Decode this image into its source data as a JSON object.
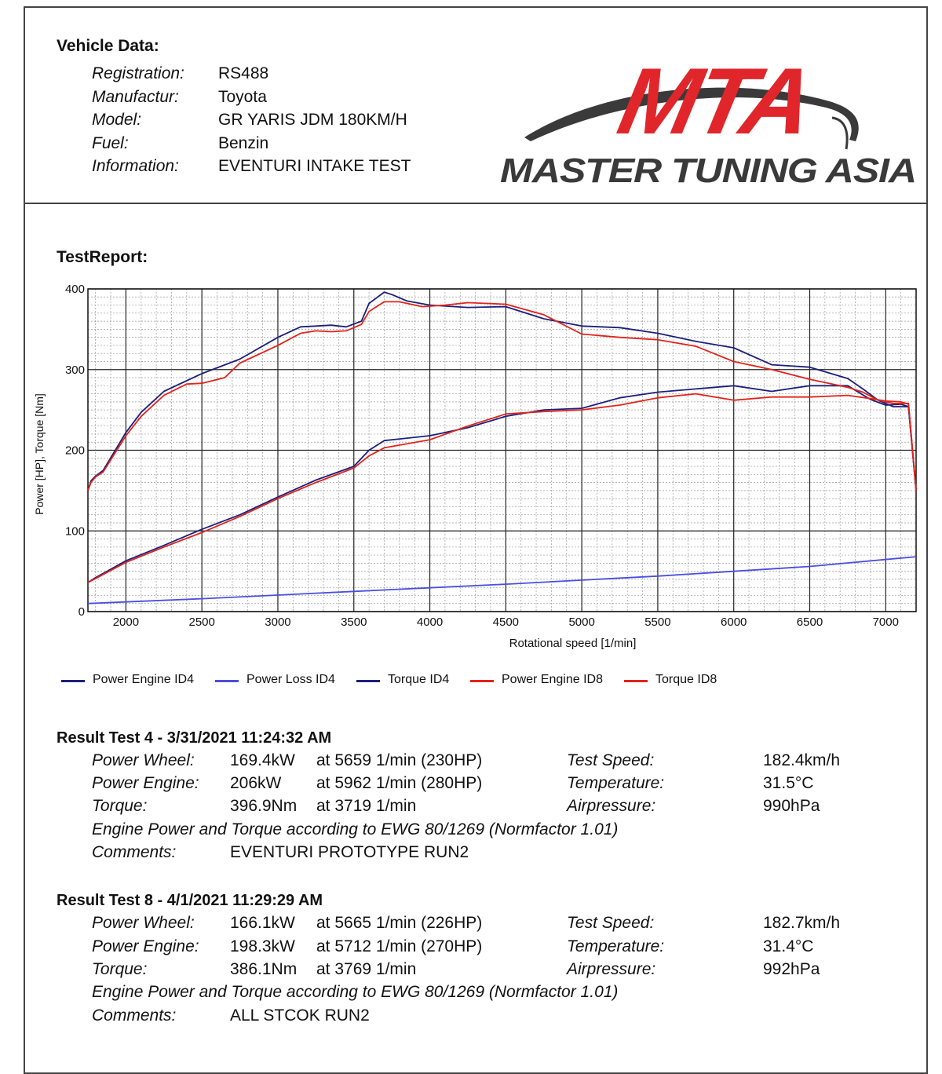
{
  "vehicle": {
    "title": "Vehicle Data:",
    "rows": [
      {
        "label": "Registration:",
        "value": "RS488"
      },
      {
        "label": "Manufactur:",
        "value": "Toyota"
      },
      {
        "label": "Model:",
        "value": "GR YARIS JDM 180KM/H"
      },
      {
        "label": "Fuel:",
        "value": "Benzin"
      },
      {
        "label": "Information:",
        "value": "EVENTURI INTAKE TEST"
      }
    ]
  },
  "logo": {
    "letters": "MTA",
    "text": "MASTER TUNING ASIA",
    "red": "#e0262b",
    "grey": "#3a3a3a"
  },
  "report_title": "TestReport:",
  "chart_data": {
    "type": "line",
    "xlabel": "Rotational  speed [1/min]",
    "ylabel": "Power [HP], Torque [Nm]",
    "xlim": [
      1750,
      7200
    ],
    "ylim": [
      0,
      400
    ],
    "xticks": [
      2000,
      2500,
      3000,
      3500,
      4000,
      4500,
      5000,
      5500,
      6000,
      6500,
      7000
    ],
    "yticks": [
      0,
      100,
      200,
      300,
      400
    ],
    "grid": true,
    "legend": "bottom",
    "series": [
      {
        "name": "Power Engine ID4",
        "color": "#1b1f7a",
        "x": [
          1750,
          1800,
          2000,
          2250,
          2500,
          2750,
          3000,
          3250,
          3500,
          3600,
          3700,
          4000,
          4250,
          4500,
          4750,
          5000,
          5250,
          5500,
          5750,
          6000,
          6250,
          6500,
          6750,
          6900,
          7000,
          7100,
          7150,
          7200
        ],
        "y": [
          36,
          42,
          63,
          82,
          102,
          120,
          142,
          163,
          180,
          200,
          212,
          218,
          228,
          242,
          250,
          252,
          265,
          272,
          276,
          280,
          273,
          280,
          280,
          263,
          256,
          257,
          254,
          150
        ]
      },
      {
        "name": "Power Loss ID4",
        "color": "#4a4ee0",
        "x": [
          1750,
          2500,
          3500,
          4500,
          5500,
          6500,
          7200
        ],
        "y": [
          10,
          16,
          25,
          34,
          44,
          56,
          68
        ]
      },
      {
        "name": "Torque ID4",
        "color": "#1b1f7a",
        "x": [
          1750,
          1770,
          1800,
          1850,
          2000,
          2100,
          2250,
          2500,
          2750,
          3000,
          3150,
          3250,
          3350,
          3450,
          3550,
          3600,
          3700,
          3750,
          3850,
          4000,
          4250,
          4500,
          4750,
          5000,
          5250,
          5500,
          5750,
          6000,
          6250,
          6500,
          6750,
          6850,
          6950,
          7050,
          7150,
          7200
        ],
        "y": [
          150,
          162,
          168,
          175,
          222,
          247,
          273,
          295,
          313,
          340,
          353,
          354,
          355,
          353,
          360,
          382,
          396,
          393,
          385,
          380,
          377,
          378,
          363,
          354,
          352,
          345,
          335,
          327,
          306,
          303,
          289,
          276,
          262,
          254,
          254,
          150
        ]
      },
      {
        "name": "Power Engine ID8",
        "color": "#e2231a",
        "x": [
          1750,
          1800,
          2000,
          2250,
          2500,
          2750,
          3000,
          3250,
          3500,
          3600,
          3700,
          4000,
          4250,
          4500,
          4750,
          5000,
          5250,
          5500,
          5750,
          6000,
          6250,
          6500,
          6750,
          6900,
          7000,
          7100,
          7150,
          7200
        ],
        "y": [
          36,
          41,
          61,
          80,
          98,
          118,
          140,
          160,
          178,
          193,
          203,
          213,
          230,
          245,
          248,
          250,
          256,
          265,
          270,
          262,
          266,
          266,
          268,
          264,
          261,
          260,
          257,
          150
        ]
      },
      {
        "name": "Torque ID8",
        "color": "#e2231a",
        "x": [
          1750,
          1770,
          1800,
          1850,
          2000,
          2100,
          2250,
          2400,
          2500,
          2650,
          2750,
          3000,
          3150,
          3250,
          3350,
          3450,
          3550,
          3600,
          3700,
          3800,
          3950,
          4100,
          4250,
          4500,
          4750,
          5000,
          5250,
          5500,
          5750,
          6000,
          6250,
          6500,
          6750,
          6850,
          6950,
          7050,
          7150,
          7200
        ],
        "y": [
          150,
          160,
          167,
          173,
          218,
          242,
          268,
          282,
          283,
          290,
          308,
          330,
          345,
          348,
          347,
          348,
          356,
          372,
          384,
          384,
          378,
          380,
          383,
          381,
          368,
          344,
          340,
          337,
          329,
          310,
          300,
          288,
          278,
          272,
          262,
          258,
          258,
          150
        ]
      }
    ]
  },
  "results": [
    {
      "title": "Result Test 4 - 3/31/2021 11:24:32 AM",
      "power_wheel": {
        "label": "Power Wheel:",
        "value": "169.4kW",
        "at": "at 5659 1/min (230HP)"
      },
      "power_engine": {
        "label": "Power Engine:",
        "value": "206kW",
        "at": "at 5962 1/min (280HP)"
      },
      "torque": {
        "label": "Torque:",
        "value": "396.9Nm",
        "at": "at 3719 1/min"
      },
      "test_speed": {
        "label": "Test Speed:",
        "value": "182.4km/h"
      },
      "temperature": {
        "label": "Temperature:",
        "value": "31.5°C"
      },
      "airpressure": {
        "label": "Airpressure:",
        "value": "990hPa"
      },
      "norm_note": "Engine Power and Torque according to EWG 80/1269 (Normfactor 1.01)",
      "comments": {
        "label": "Comments:",
        "value": "EVENTURI PROTOTYPE RUN2"
      }
    },
    {
      "title": "Result Test 8 - 4/1/2021 11:29:29 AM",
      "power_wheel": {
        "label": "Power Wheel:",
        "value": "166.1kW",
        "at": "at 5665 1/min (226HP)"
      },
      "power_engine": {
        "label": "Power Engine:",
        "value": "198.3kW",
        "at": "at 5712 1/min (270HP)"
      },
      "torque": {
        "label": "Torque:",
        "value": "386.1Nm",
        "at": "at 3769 1/min"
      },
      "test_speed": {
        "label": "Test Speed:",
        "value": "182.7km/h"
      },
      "temperature": {
        "label": "Temperature:",
        "value": "31.4°C"
      },
      "airpressure": {
        "label": "Airpressure:",
        "value": "992hPa"
      },
      "norm_note": "Engine Power and Torque according to EWG 80/1269 (Normfactor 1.01)",
      "comments": {
        "label": "Comments:",
        "value": "ALL STCOK RUN2"
      }
    }
  ]
}
